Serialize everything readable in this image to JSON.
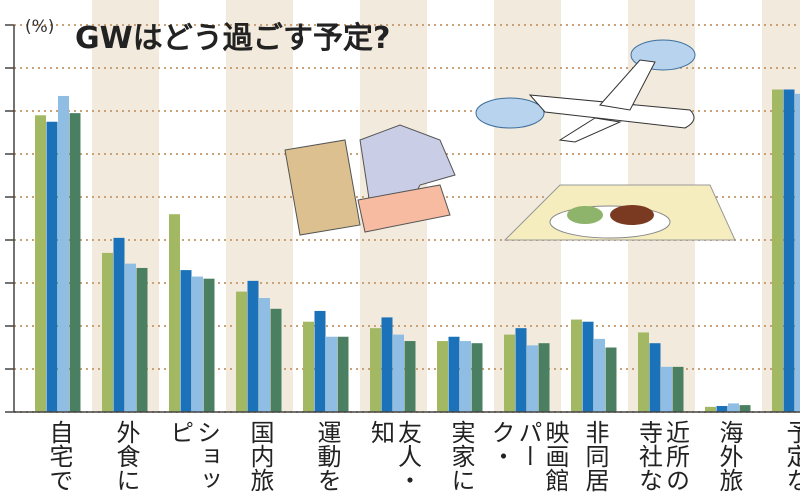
{
  "chart_data": {
    "type": "bar",
    "title": "GWはどう過ごす予定?",
    "unit_label": "(%)",
    "categories": [
      "自宅で",
      "外食に",
      "ショッピ",
      "国内旅",
      "運動を",
      "友人・知",
      "実家に",
      "映画館\nパーク・",
      "非同居",
      "近所の\n寺社な",
      "海外旅",
      "予定な"
    ],
    "series": [
      {
        "color": "#a3b862",
        "values": [
          69,
          37,
          46,
          28,
          21,
          19.5,
          16.5,
          18,
          21.5,
          18.5,
          1.2,
          75
        ]
      },
      {
        "color": "#1b72b8",
        "values": [
          67.5,
          40.5,
          33,
          30.5,
          23.5,
          22,
          17.5,
          19.5,
          21,
          16,
          1.4,
          75
        ]
      },
      {
        "color": "#8fbde3",
        "values": [
          73.5,
          34.5,
          31.5,
          26.5,
          17.5,
          18,
          16.5,
          15.5,
          17,
          10.5,
          2,
          74
        ]
      },
      {
        "color": "#4b7f62",
        "values": [
          69.5,
          33.5,
          31,
          24,
          17.5,
          16.5,
          16,
          16,
          15,
          10.5,
          1.6,
          74
        ]
      }
    ],
    "ylim": [
      0,
      90
    ],
    "yticks": [
      0,
      10,
      20,
      30,
      40,
      50,
      60,
      70,
      80,
      90
    ],
    "grid": true
  }
}
